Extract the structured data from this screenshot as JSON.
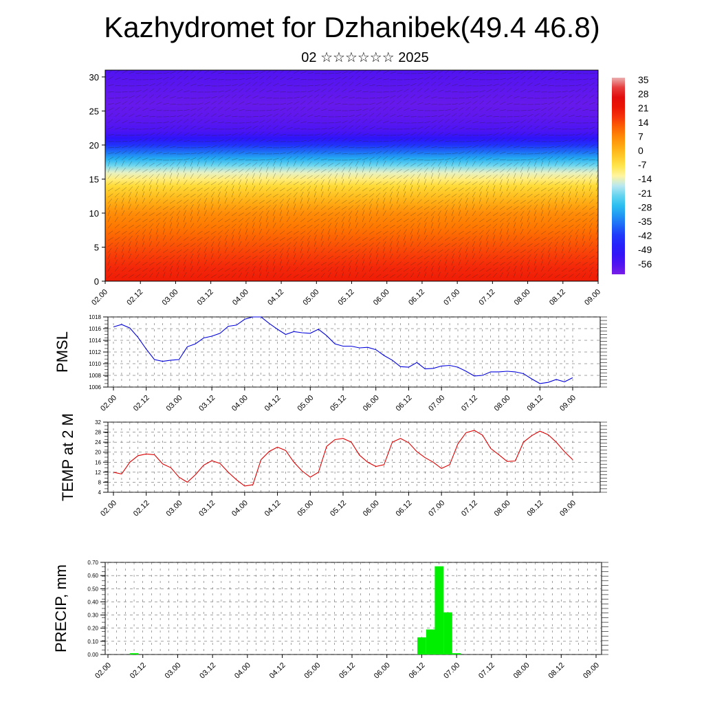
{
  "header": {
    "title": "Kazhydromet for Dzhanibek(49.4 46.8)",
    "subtitle": "02 ☆☆☆☆☆☆ 2025"
  },
  "chart_data": [
    {
      "type": "heatmap",
      "title": "",
      "x_tick_labels": [
        "02.00",
        "02.12",
        "03.00",
        "03.12",
        "04.00",
        "04.12",
        "05.00",
        "05.12",
        "06.00",
        "06.12",
        "07.00",
        "07.12",
        "08.00",
        "08.12",
        "09.00"
      ],
      "y_tick_labels": [
        "0",
        "5",
        "10",
        "15",
        "20",
        "25",
        "30"
      ],
      "ylim": [
        0,
        31
      ],
      "colorbar_labels": [
        "35",
        "28",
        "21",
        "14",
        "7",
        "0",
        "-7",
        "-14",
        "-21",
        "-28",
        "-35",
        "-42",
        "-49",
        "-56"
      ],
      "colorbar_range": [
        -60,
        38
      ],
      "levels": [
        0,
        2,
        4,
        6,
        8,
        10,
        11,
        12,
        13,
        14,
        15,
        16,
        17,
        18,
        19,
        20,
        21,
        22,
        24,
        26,
        28,
        30,
        31
      ],
      "profile": [
        22,
        20,
        17,
        14,
        11,
        8,
        5,
        2,
        -1,
        -4,
        -9,
        -13,
        -20,
        -28,
        -35,
        -42,
        -49,
        -54,
        -57,
        -58,
        -57,
        -56,
        -55
      ],
      "wind_vectors": "present"
    },
    {
      "type": "line",
      "ylabel": "PMSL",
      "ylim": [
        1006,
        1018
      ],
      "y_tick_labels": [
        "1006",
        "1008",
        "1010",
        "1012",
        "1014",
        "1016",
        "1018"
      ],
      "x_tick_labels": [
        "02.00",
        "02.12",
        "03.00",
        "03.12",
        "04.00",
        "04.12",
        "05.00",
        "05.12",
        "06.00",
        "06.12",
        "07.00",
        "07.12",
        "08.00",
        "08.12",
        "09.00"
      ],
      "series": [
        {
          "color": "#0000dd",
          "x_hours": [
            0,
            3,
            6,
            9,
            12,
            15,
            18,
            21,
            24,
            27,
            30,
            33,
            36,
            39,
            42,
            45,
            48,
            51,
            54,
            57,
            60,
            63,
            66,
            69,
            72,
            75,
            78,
            81,
            84,
            87,
            90,
            93,
            96,
            99,
            102,
            105,
            108,
            111,
            114,
            117,
            120,
            123,
            126,
            129,
            132,
            135,
            138,
            141,
            144,
            147,
            150,
            153,
            156,
            159,
            162,
            165,
            168
          ],
          "values": [
            1016.3,
            1016.7,
            1016.1,
            1014.5,
            1012.5,
            1010.7,
            1010.4,
            1010.6,
            1010.7,
            1012.9,
            1013.4,
            1014.4,
            1014.7,
            1015.2,
            1016.4,
            1016.6,
            1017.6,
            1018.0,
            1018.0,
            1016.9,
            1015.9,
            1015.0,
            1015.5,
            1015.3,
            1015.2,
            1015.9,
            1014.8,
            1013.4,
            1013.0,
            1013.0,
            1012.7,
            1012.8,
            1012.4,
            1011.4,
            1010.6,
            1009.5,
            1009.4,
            1010.2,
            1009.1,
            1009.2,
            1009.6,
            1009.7,
            1009.4,
            1008.7,
            1007.9,
            1008.0,
            1008.6,
            1008.6,
            1008.7,
            1008.6,
            1008.3,
            1007.4,
            1006.6,
            1006.8,
            1007.3,
            1006.9,
            1007.6
          ]
        }
      ]
    },
    {
      "type": "line",
      "ylabel": "TEMP at 2 M",
      "ylim": [
        4,
        32
      ],
      "y_tick_labels": [
        "4",
        "8",
        "12",
        "16",
        "20",
        "24",
        "28",
        "32"
      ],
      "x_tick_labels": [
        "02.00",
        "02.12",
        "03.00",
        "03.12",
        "04.00",
        "04.12",
        "05.00",
        "05.12",
        "06.00",
        "06.12",
        "07.00",
        "07.12",
        "08.00",
        "08.12",
        "09.00"
      ],
      "series": [
        {
          "color": "#dd0000",
          "x_hours": [
            0,
            3,
            6,
            9,
            12,
            15,
            18,
            21,
            24,
            27,
            30,
            33,
            36,
            39,
            42,
            45,
            48,
            51,
            54,
            57,
            60,
            63,
            66,
            69,
            72,
            75,
            78,
            81,
            84,
            87,
            90,
            93,
            96,
            99,
            102,
            105,
            108,
            111,
            114,
            117,
            120,
            123,
            126,
            129,
            132,
            135,
            138,
            141,
            144,
            147,
            150,
            153,
            156,
            159,
            162,
            165,
            168
          ],
          "values": [
            12,
            11.3,
            16,
            18.6,
            19.3,
            19,
            15.3,
            13.8,
            10,
            8,
            11,
            14.8,
            16.6,
            15.5,
            12,
            9,
            6.5,
            7,
            17,
            20.3,
            22,
            20.7,
            16,
            12.5,
            10,
            12,
            22.3,
            25,
            25.5,
            24,
            18.8,
            16,
            14.3,
            15,
            24,
            25.5,
            23.8,
            20.2,
            17.8,
            16,
            13.5,
            15,
            23.3,
            27.8,
            28.7,
            26.8,
            21.5,
            19,
            16.3,
            16.5,
            24,
            26.6,
            28.4,
            27,
            24,
            20.2,
            17
          ]
        }
      ]
    },
    {
      "type": "bar",
      "ylabel": "PRECIP, mm",
      "ylim": [
        0,
        0.7
      ],
      "y_tick_labels": [
        "0.00",
        "0.10",
        "0.20",
        "0.30",
        "0.40",
        "0.50",
        "0.60",
        "0.70"
      ],
      "x_tick_labels": [
        "02.00",
        "02.12",
        "03.00",
        "03.12",
        "04.00",
        "04.12",
        "05.00",
        "05.12",
        "06.00",
        "06.12",
        "07.00",
        "07.12",
        "08.00",
        "08.12",
        "09.00"
      ],
      "bar_color": "#00ee00",
      "bars": [
        {
          "x_hours": 9,
          "value": 0.01
        },
        {
          "x_hours": 108,
          "value": 0.13
        },
        {
          "x_hours": 111,
          "value": 0.19
        },
        {
          "x_hours": 114,
          "value": 0.67
        },
        {
          "x_hours": 117,
          "value": 0.32
        },
        {
          "x_hours": 120,
          "value": 0.01
        }
      ]
    }
  ]
}
